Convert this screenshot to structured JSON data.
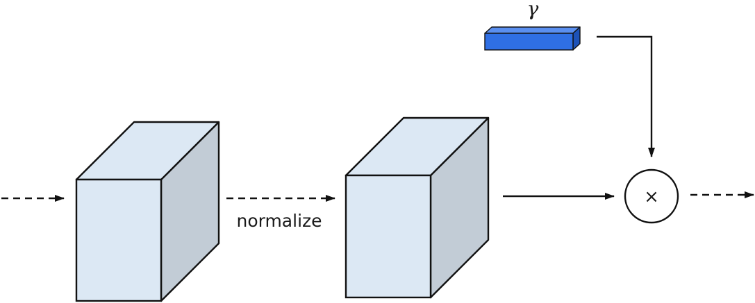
{
  "labels": {
    "normalize": "normalize",
    "gamma": "γ",
    "multiply": "×"
  },
  "colors": {
    "cube_front": "#dce8f4",
    "cube_top": "#dce8f4",
    "cube_side": "#c2ccd6",
    "gamma_front": "#2f6fe4",
    "gamma_top": "#5a8ff0",
    "gamma_side": "#1d52b8",
    "stroke": "#111111"
  },
  "icons": [
    "arrow-right-icon",
    "arrow-down-icon",
    "multiply-icon"
  ]
}
